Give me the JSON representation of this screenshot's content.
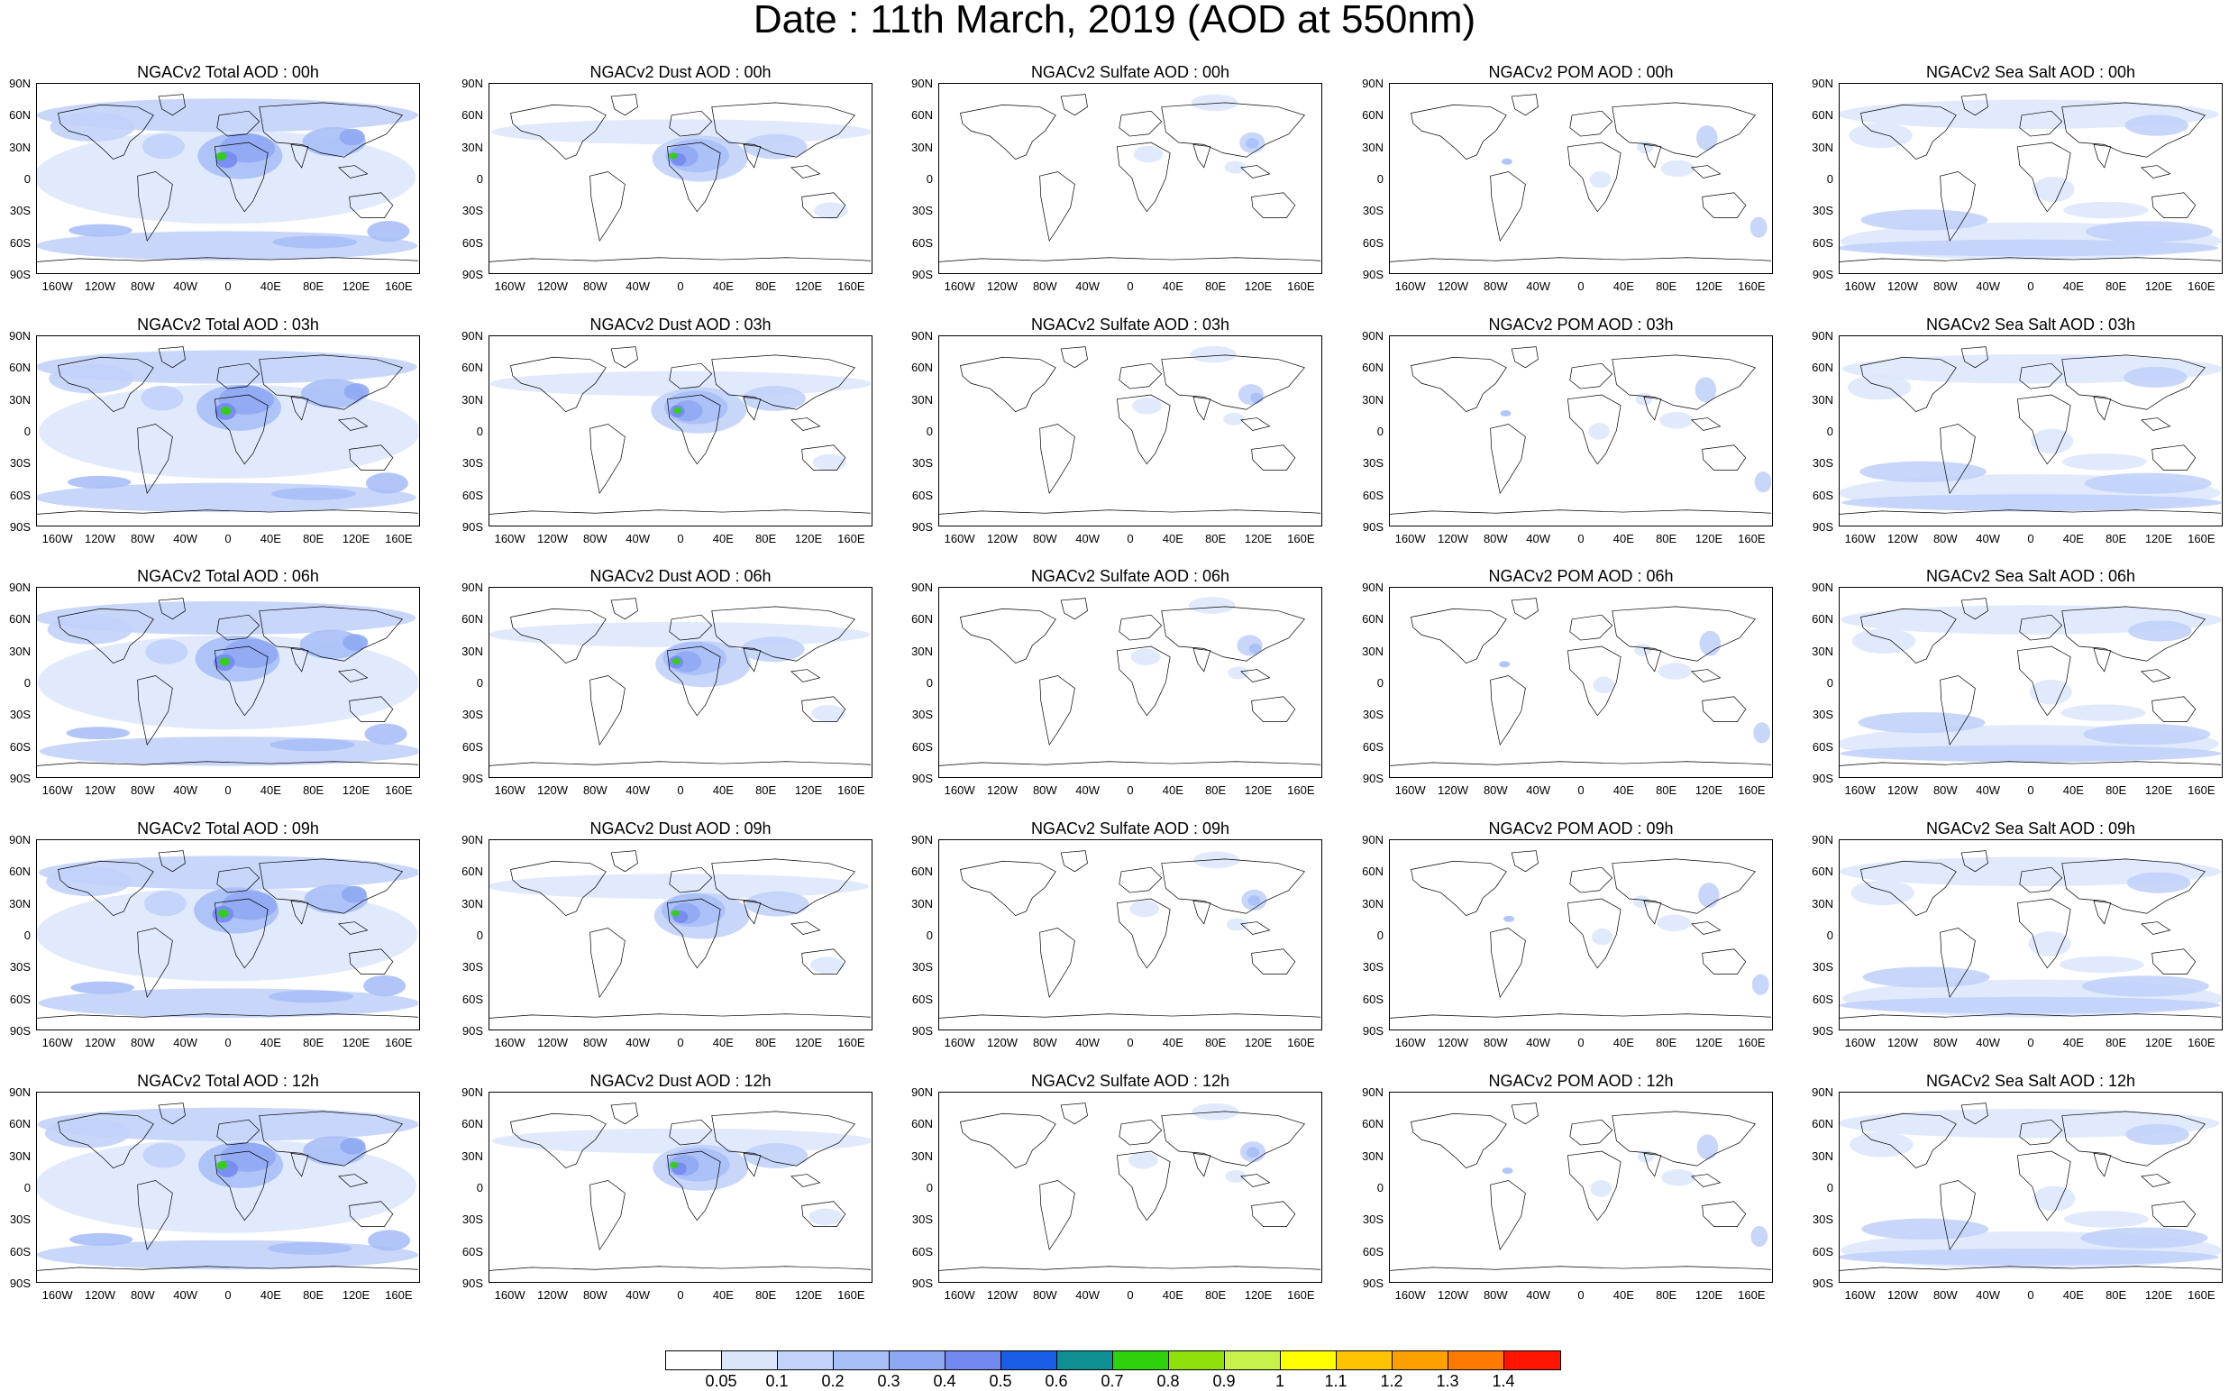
{
  "title": "Date : 11th March, 2019 (AOD at 550nm)",
  "latitude_labels": [
    "90N",
    "60N",
    "30N",
    "0",
    "30S",
    "60S",
    "90S"
  ],
  "longitude_labels": [
    "160W",
    "120W",
    "80W",
    "40W",
    "0",
    "40E",
    "80E",
    "120E",
    "160E"
  ],
  "panel_titles": [
    [
      "NGACv2 Total AOD : 00h",
      "NGACv2 Dust AOD : 00h",
      "NGACv2 Sulfate AOD : 00h",
      "NGACv2 POM AOD : 00h",
      "NGACv2 Sea Salt AOD : 00h"
    ],
    [
      "NGACv2 Total AOD : 03h",
      "NGACv2 Dust AOD : 03h",
      "NGACv2 Sulfate AOD : 03h",
      "NGACv2 POM AOD : 03h",
      "NGACv2 Sea Salt AOD : 03h"
    ],
    [
      "NGACv2 Total AOD : 06h",
      "NGACv2 Dust AOD : 06h",
      "NGACv2 Sulfate AOD : 06h",
      "NGACv2 POM AOD : 06h",
      "NGACv2 Sea Salt AOD : 06h"
    ],
    [
      "NGACv2 Total AOD : 09h",
      "NGACv2 Dust AOD : 09h",
      "NGACv2 Sulfate AOD : 09h",
      "NGACv2 POM AOD : 09h",
      "NGACv2 Sea Salt  AOD : 09h"
    ],
    [
      "NGACv2 Total AOD : 12h",
      "NGACv2 Dust AOD : 12h",
      "NGACv2 Sulfate AOD : 12h",
      "NGACv2 POM  AOD : 12h",
      "NGACv2 Sea Salt AOD : 12h"
    ]
  ],
  "colorbar": {
    "labels": [
      "0.05",
      "0.1",
      "0.2",
      "0.3",
      "0.4",
      "0.5",
      "0.6",
      "0.7",
      "0.8",
      "0.9",
      "1",
      "1.1",
      "1.2",
      "1.3",
      "1.4"
    ],
    "colors": [
      "#ffffff",
      "#dce6fb",
      "#c2d2fa",
      "#a8bff7",
      "#8fa8f3",
      "#7489f0",
      "#1a5ee8",
      "#0f8f93",
      "#2ed10b",
      "#8ee10a",
      "#c6f24a",
      "#ffff00",
      "#ffc400",
      "#ffa000",
      "#ff7a00",
      "#ff1500"
    ]
  }
}
